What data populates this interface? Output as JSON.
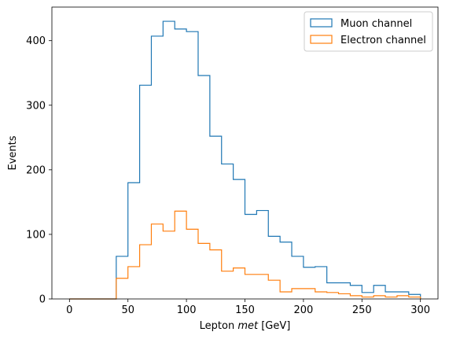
{
  "chart_data": {
    "type": "histogram",
    "xlabel_prefix": "Lepton ",
    "xlabel_italic": "met",
    "xlabel_suffix": " [GeV]",
    "ylabel": "Events",
    "xlim": [
      -15,
      315
    ],
    "ylim": [
      0,
      452
    ],
    "xticks": [
      0,
      50,
      100,
      150,
      200,
      250,
      300
    ],
    "yticks": [
      0,
      100,
      200,
      300,
      400
    ],
    "bin_edges": [
      0,
      10,
      20,
      30,
      40,
      50,
      60,
      70,
      80,
      90,
      100,
      110,
      120,
      130,
      140,
      150,
      160,
      170,
      180,
      190,
      200,
      210,
      220,
      230,
      240,
      250,
      260,
      270,
      280,
      290,
      300
    ],
    "series": [
      {
        "name": "Muon channel",
        "color": "#1f77b4",
        "values": [
          0,
          0,
          0,
          0,
          66,
          180,
          331,
          407,
          430,
          418,
          414,
          346,
          252,
          209,
          185,
          131,
          137,
          97,
          88,
          66,
          49,
          50,
          25,
          25,
          21,
          10,
          21,
          11,
          11,
          7
        ]
      },
      {
        "name": "Electron channel",
        "color": "#ff7f0e",
        "values": [
          0,
          0,
          0,
          0,
          32,
          50,
          84,
          116,
          105,
          136,
          108,
          86,
          76,
          43,
          48,
          38,
          38,
          29,
          11,
          16,
          16,
          11,
          10,
          8,
          5,
          3,
          5,
          3,
          5,
          3
        ]
      }
    ],
    "legend_position": "top-right"
  }
}
